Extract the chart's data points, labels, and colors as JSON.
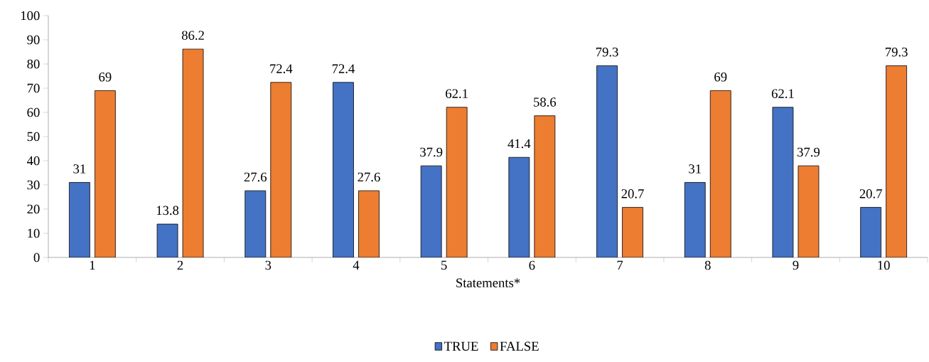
{
  "chart_data": {
    "type": "bar",
    "xlabel": "Statements*",
    "categories": [
      "1",
      "2",
      "3",
      "4",
      "5",
      "6",
      "7",
      "8",
      "9",
      "10"
    ],
    "series": [
      {
        "name": "TRUE",
        "color": "#4472c4",
        "values": [
          31,
          13.8,
          27.6,
          72.4,
          37.9,
          41.4,
          79.3,
          31,
          62.1,
          20.7
        ]
      },
      {
        "name": "FALSE",
        "color": "#ed7d31",
        "values": [
          69,
          86.2,
          72.4,
          27.6,
          62.1,
          58.6,
          20.7,
          69,
          37.9,
          79.3
        ]
      }
    ],
    "ylim": [
      0,
      100
    ],
    "yticks": [
      0,
      10,
      20,
      30,
      40,
      50,
      60,
      70,
      80,
      90,
      100
    ],
    "data_labels": true,
    "legend": "bottom"
  }
}
